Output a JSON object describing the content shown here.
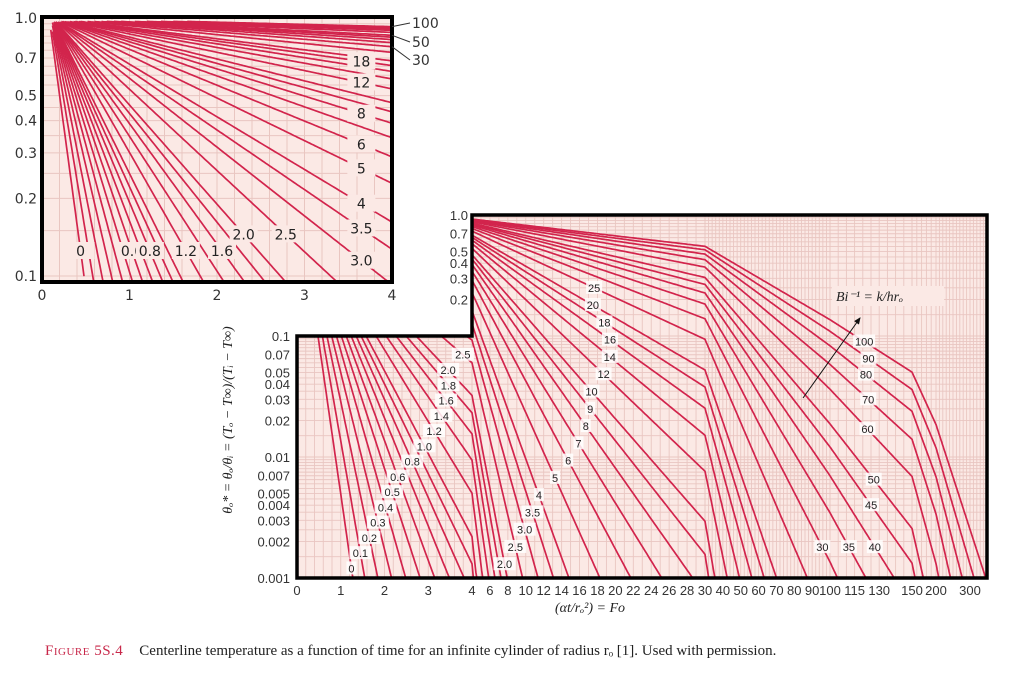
{
  "caption": {
    "figure_label": "Figure 5S.4",
    "text": "Centerline temperature as a function of time for an infinite cylinder of radius rₒ [1]. Used with permission."
  },
  "colors": {
    "curve": "#d2244c",
    "grid": "#e9c6c1",
    "background": "#fbe9e5",
    "caption_label": "#c8284a"
  },
  "chart_data": [
    {
      "id": "inset",
      "type": "line",
      "y_scale": "log",
      "x_range": [
        0,
        4
      ],
      "y_range": [
        0.1,
        1.0
      ],
      "grid": true,
      "x_ticks": [
        "0",
        "1",
        "2",
        "3",
        "4"
      ],
      "y_ticks": [
        "0.1",
        "0.2",
        "0.3",
        "0.4",
        "0.5",
        "0.7",
        "1.0"
      ],
      "parameter": "Bi⁻¹",
      "curves": [
        0,
        0.1,
        0.2,
        0.3,
        0.4,
        0.5,
        0.6,
        0.7,
        0.8,
        0.9,
        1.0,
        1.2,
        1.4,
        1.6,
        1.8,
        2.0,
        2.5,
        3.0,
        3.5,
        4,
        5,
        6,
        7,
        8,
        9,
        10,
        12,
        14,
        16,
        18,
        20,
        25,
        30,
        35,
        40,
        45,
        50,
        60,
        70,
        80,
        90,
        100
      ],
      "curve_labels": [
        "0",
        "0.6",
        "0.8",
        "1.2",
        "1.6",
        "2.0",
        "2.5",
        "3.0",
        "3.5",
        "4",
        "5",
        "6",
        "8",
        "12",
        "18"
      ],
      "right_labels": [
        "100",
        "50",
        "30"
      ]
    },
    {
      "id": "main",
      "type": "line",
      "y_scale": "log",
      "x_scale": "piecewise linear",
      "x_range": [
        0,
        300
      ],
      "y_range": [
        0.001,
        1.0
      ],
      "grid": true,
      "xlabel": "(αt/rₒ²) = Fo",
      "ylabel": "θₒ* = θₒ/θᵢ = (Tₒ − T∞)/(Tᵢ − T∞)",
      "annotation": "Bi⁻¹ = k/hrₒ",
      "x_ticks": [
        "0",
        "1",
        "2",
        "3",
        "4",
        "6",
        "8",
        "10",
        "12",
        "14",
        "16",
        "18",
        "20",
        "22",
        "24",
        "26",
        "28",
        "30",
        "40",
        "50",
        "60",
        "70",
        "80",
        "90",
        "100",
        "115",
        "130",
        "150",
        "200",
        "300"
      ],
      "y_ticks_lower": [
        "0.001",
        "0.002",
        "0.003",
        "0.004",
        "0.005",
        "0.007",
        "0.01",
        "0.02",
        "0.03",
        "0.04",
        "0.05",
        "0.07",
        "0.1"
      ],
      "y_ticks_upper": [
        "0.2",
        "0.3",
        "0.4",
        "0.5",
        "0.7",
        "1.0"
      ],
      "parameter": "Bi⁻¹",
      "curves": [
        0,
        0.1,
        0.2,
        0.3,
        0.4,
        0.5,
        0.6,
        0.7,
        0.8,
        0.9,
        1.0,
        1.2,
        1.4,
        1.6,
        1.8,
        2.0,
        2.5,
        3.0,
        3.5,
        4,
        5,
        6,
        7,
        8,
        9,
        10,
        12,
        14,
        16,
        18,
        20,
        25,
        30,
        35,
        40,
        45,
        50,
        60,
        70,
        80,
        90,
        100
      ],
      "labels_short_time": [
        "0",
        "0.1",
        "0.2",
        "0.3",
        "0.4",
        "0.5",
        "0.6",
        "0.8",
        "1.0",
        "1.2",
        "1.4",
        "1.6",
        "1.8",
        "2.0",
        "2.5"
      ],
      "labels_mid_time": [
        "2.0",
        "2.5",
        "3.0",
        "3.5",
        "4",
        "5",
        "6",
        "7",
        "8",
        "9",
        "10",
        "12",
        "14",
        "16",
        "18",
        "20",
        "25"
      ],
      "labels_long_time": [
        "30",
        "35",
        "40",
        "45",
        "50",
        "60",
        "70",
        "80",
        "90",
        "100"
      ]
    }
  ]
}
